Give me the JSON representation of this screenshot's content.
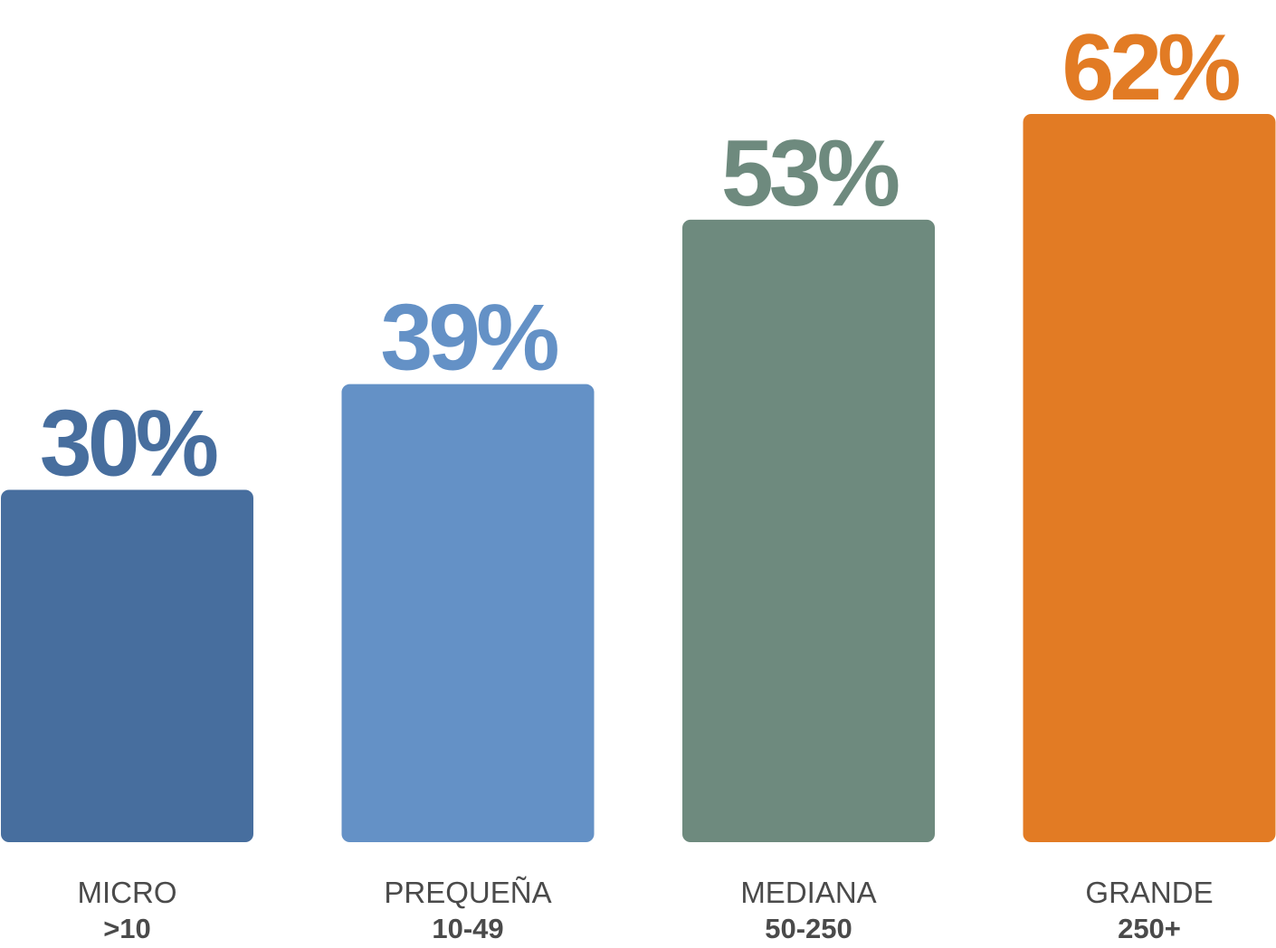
{
  "chart_data": {
    "type": "bar",
    "categories": [
      "MICRO",
      "PREQUEÑA",
      "MEDIANA",
      "GRANDE"
    ],
    "subcategories": [
      ">10",
      "10-49",
      "50-250",
      "250+"
    ],
    "values": [
      30,
      39,
      53,
      62
    ],
    "value_labels": [
      "30%",
      "39%",
      "53%",
      "62%"
    ],
    "colors": [
      "#476e9e",
      "#6491c6",
      "#6e8a7e",
      "#e27b24"
    ],
    "title": "",
    "xlabel": "",
    "ylabel": "",
    "ylim": [
      0,
      62
    ],
    "grid": false,
    "legend": "none"
  }
}
